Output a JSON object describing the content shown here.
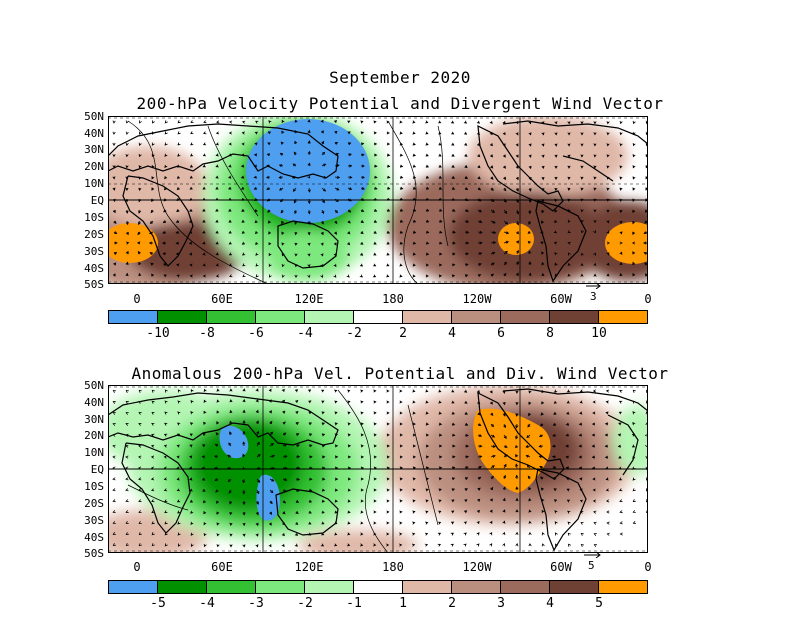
{
  "main_title": "September 2020",
  "colors": {
    "blue": "#4f9ff0",
    "green_dark": "#009000",
    "green_med": "#33c033",
    "green_light": "#7de87d",
    "green_pale": "#b4f5b4",
    "white": "#ffffff",
    "brown_pale": "#e0b8a8",
    "brown_light": "#bb8f80",
    "brown_med": "#9b6b5d",
    "brown_dark": "#6f4134",
    "orange": "#ff9a00"
  },
  "panel1": {
    "title": "200-hPa Velocity Potential and Divergent Wind Vector",
    "lat_labels": [
      "50N",
      "40N",
      "30N",
      "20N",
      "10N",
      "EQ",
      "10S",
      "20S",
      "30S",
      "40S",
      "50S"
    ],
    "lon_labels": [
      "0",
      "60E",
      "120E",
      "180",
      "120W",
      "60W",
      "0"
    ],
    "ref_vector": "3",
    "colorbar_labels": [
      "-10",
      "-8",
      "-6",
      "-4",
      "-2",
      "2",
      "4",
      "6",
      "8",
      "10"
    ],
    "colorbar_colors": [
      "#4f9ff0",
      "#009000",
      "#33c033",
      "#7de87d",
      "#b4f5b4",
      "#ffffff",
      "#e0b8a8",
      "#bb8f80",
      "#9b6b5d",
      "#6f4134",
      "#ff9a00"
    ]
  },
  "panel2": {
    "title": "Anomalous 200-hPa Vel. Potential and Div. Wind Vector",
    "lat_labels": [
      "50N",
      "40N",
      "30N",
      "20N",
      "10N",
      "EQ",
      "10S",
      "20S",
      "30S",
      "40S",
      "50S"
    ],
    "lon_labels": [
      "0",
      "60E",
      "120E",
      "180",
      "120W",
      "60W",
      "0"
    ],
    "ref_vector": "5",
    "colorbar_labels": [
      "-5",
      "-4",
      "-3",
      "-2",
      "-1",
      "1",
      "2",
      "3",
      "4",
      "5"
    ],
    "colorbar_colors": [
      "#4f9ff0",
      "#009000",
      "#33c033",
      "#7de87d",
      "#b4f5b4",
      "#ffffff",
      "#e0b8a8",
      "#bb8f80",
      "#9b6b5d",
      "#6f4134",
      "#ff9a00"
    ]
  }
}
